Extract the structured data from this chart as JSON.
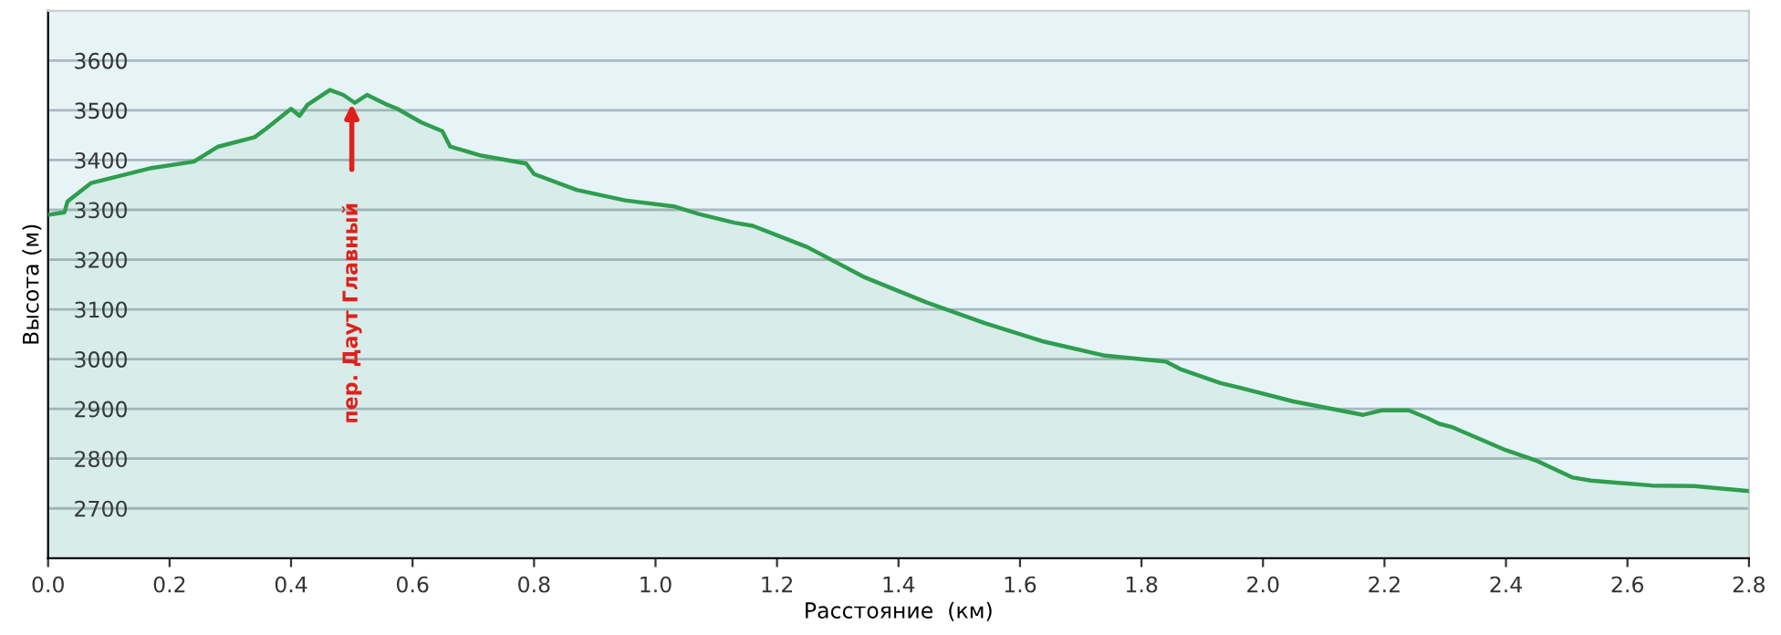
{
  "chart_data": {
    "type": "area",
    "xlabel": "Расстояние  (км)",
    "ylabel": "Высота (м)",
    "xlim": [
      0,
      2.8
    ],
    "ylim": [
      2600,
      3700
    ],
    "xticks": [
      {
        "value": 0,
        "label": "0.0"
      },
      {
        "value": 0.2,
        "label": "0.2"
      },
      {
        "value": 0.4,
        "label": "0.4"
      },
      {
        "value": 0.6,
        "label": "0.6"
      },
      {
        "value": 0.8,
        "label": "0.8"
      },
      {
        "value": 1,
        "label": "1.0"
      },
      {
        "value": 1.2,
        "label": "1.2"
      },
      {
        "value": 1.4,
        "label": "1.4"
      },
      {
        "value": 1.6,
        "label": "1.6"
      },
      {
        "value": 1.8,
        "label": "1.8"
      },
      {
        "value": 2,
        "label": "2.0"
      },
      {
        "value": 2.2,
        "label": "2.2"
      },
      {
        "value": 2.4,
        "label": "2.4"
      },
      {
        "value": 2.6,
        "label": "2.6"
      },
      {
        "value": 2.8,
        "label": "2.8"
      }
    ],
    "yticks": [
      2700,
      2800,
      2900,
      3000,
      3100,
      3200,
      3300,
      3400,
      3500,
      3600
    ],
    "grid": "y",
    "series": [
      {
        "color": "#2e9e4e",
        "x": [
          0,
          0.027,
          0.032,
          0.071,
          0.17,
          0.24,
          0.28,
          0.34,
          0.36,
          0.4,
          0.414,
          0.427,
          0.464,
          0.486,
          0.505,
          0.525,
          0.555,
          0.575,
          0.614,
          0.649,
          0.662,
          0.713,
          0.787,
          0.8,
          0.87,
          0.95,
          1.03,
          1.07,
          1.13,
          1.16,
          1.25,
          1.345,
          1.444,
          1.543,
          1.64,
          1.74,
          1.84,
          1.864,
          1.93,
          1.96,
          2.05,
          2.165,
          2.195,
          2.24,
          2.27,
          2.29,
          2.31,
          2.4,
          2.45,
          2.51,
          2.54,
          2.64,
          2.71,
          2.8
        ],
        "values": [
          3290,
          3295,
          3317,
          3354,
          3384,
          3397,
          3427,
          3446,
          3464,
          3503,
          3489,
          3511,
          3541,
          3531,
          3515,
          3531,
          3513,
          3503,
          3476,
          3458,
          3427,
          3409,
          3393,
          3372,
          3340,
          3319,
          3307,
          3292,
          3274,
          3268,
          3225,
          3164,
          3115,
          3072,
          3035,
          3007,
          2995,
          2980,
          2952,
          2943,
          2915,
          2888,
          2897,
          2897,
          2882,
          2870,
          2864,
          2817,
          2796,
          2762,
          2756,
          2746,
          2745,
          2735
        ]
      }
    ],
    "annotations": [
      "пер. Даут Главный"
    ]
  }
}
